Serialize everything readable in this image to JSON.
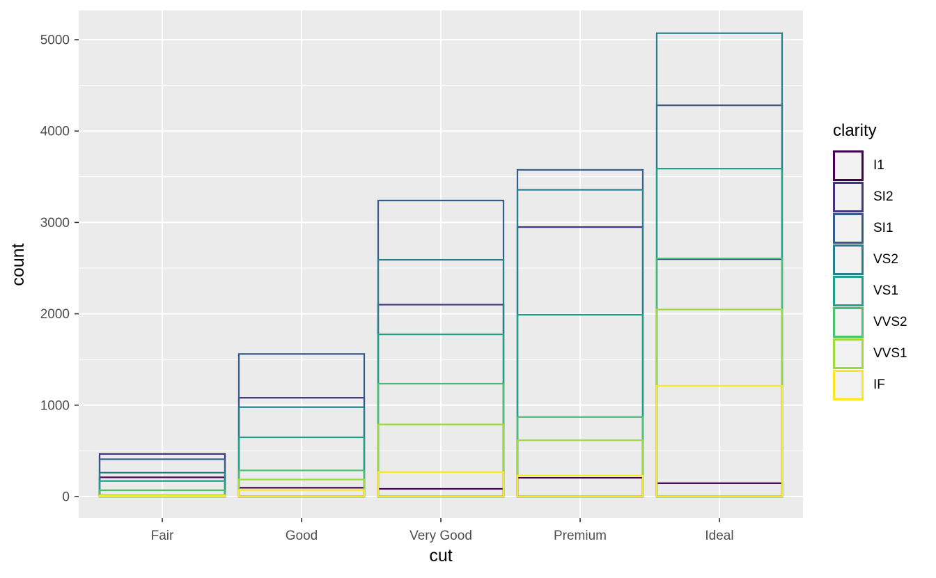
{
  "figure": {
    "background": "#FFFFFF",
    "panel_background": "#EBEBEB",
    "grid_color": "#FFFFFF",
    "tick_color": "#333333",
    "tick_label_color": "#4D4D4D"
  },
  "chart_data": {
    "type": "bar",
    "variant": "outlined bars, position identity (overlapping), fill none, viridis outline colors",
    "title": "",
    "xlabel": "cut",
    "ylabel": "count",
    "categories": [
      "Fair",
      "Good",
      "Very Good",
      "Premium",
      "Ideal"
    ],
    "series": [
      {
        "name": "I1",
        "color": "#440154",
        "values": [
          210,
          96,
          84,
          205,
          146
        ]
      },
      {
        "name": "SI2",
        "color": "#46337E",
        "values": [
          466,
          1081,
          2100,
          2949,
          2598
        ]
      },
      {
        "name": "SI1",
        "color": "#365C8D",
        "values": [
          408,
          1560,
          3240,
          3575,
          4282
        ]
      },
      {
        "name": "VS2",
        "color": "#277F8E",
        "values": [
          261,
          978,
          2591,
          3357,
          5071
        ]
      },
      {
        "name": "VS1",
        "color": "#1FA187",
        "values": [
          170,
          648,
          1775,
          1989,
          3589
        ]
      },
      {
        "name": "VVS2",
        "color": "#4AC16D",
        "values": [
          69,
          286,
          1235,
          870,
          2606
        ]
      },
      {
        "name": "VVS1",
        "color": "#9FDA3A",
        "values": [
          17,
          186,
          789,
          616,
          2047
        ]
      },
      {
        "name": "IF",
        "color": "#FDE725",
        "values": [
          9,
          71,
          268,
          230,
          1212
        ]
      }
    ],
    "y_axis": {
      "ticks": [
        0,
        1000,
        2000,
        3000,
        4000,
        5000
      ],
      "minor_ticks": [
        500,
        1500,
        2500,
        3500,
        4500
      ],
      "range": [
        0,
        5320
      ]
    },
    "x_axis": {
      "ticks": [
        "Fair",
        "Good",
        "Very Good",
        "Premium",
        "Ideal"
      ]
    },
    "legend": {
      "title": "clarity",
      "position": "right",
      "entries": [
        "I1",
        "SI2",
        "SI1",
        "VS2",
        "VS1",
        "VVS2",
        "VVS1",
        "IF"
      ]
    }
  }
}
